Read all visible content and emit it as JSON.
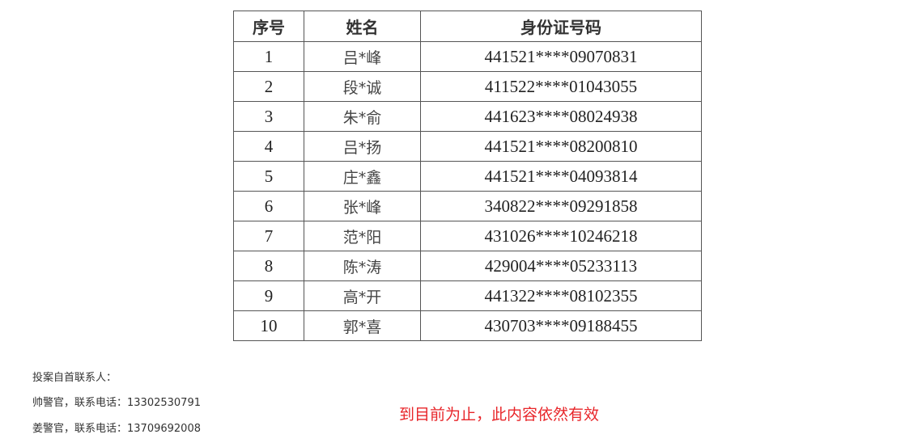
{
  "table": {
    "headers": [
      "序号",
      "姓名",
      "身份证号码"
    ],
    "rows": [
      {
        "no": "1",
        "name": "吕*峰",
        "id": "441521****09070831"
      },
      {
        "no": "2",
        "name": "段*诚",
        "id": "411522****01043055"
      },
      {
        "no": "3",
        "name": "朱*俞",
        "id": "441623****08024938"
      },
      {
        "no": "4",
        "name": "吕*扬",
        "id": "441521****08200810"
      },
      {
        "no": "5",
        "name": "庄*鑫",
        "id": "441521****04093814"
      },
      {
        "no": "6",
        "name": "张*峰",
        "id": "340822****09291858"
      },
      {
        "no": "7",
        "name": "范*阳",
        "id": "431026****10246218"
      },
      {
        "no": "8",
        "name": "陈*涛",
        "id": "429004****05233113"
      },
      {
        "no": "9",
        "name": "高*开",
        "id": "441322****08102355"
      },
      {
        "no": "10",
        "name": "郭*喜",
        "id": "430703****09188455"
      }
    ]
  },
  "contacts": {
    "heading": "投案自首联系人：",
    "lines": [
      "帅警官，联系电话：13302530791",
      "姜警官，联系电话：13709692008"
    ]
  },
  "notice": {
    "text": "到目前为止，此内容依然有效",
    "color": "#e8262a"
  }
}
